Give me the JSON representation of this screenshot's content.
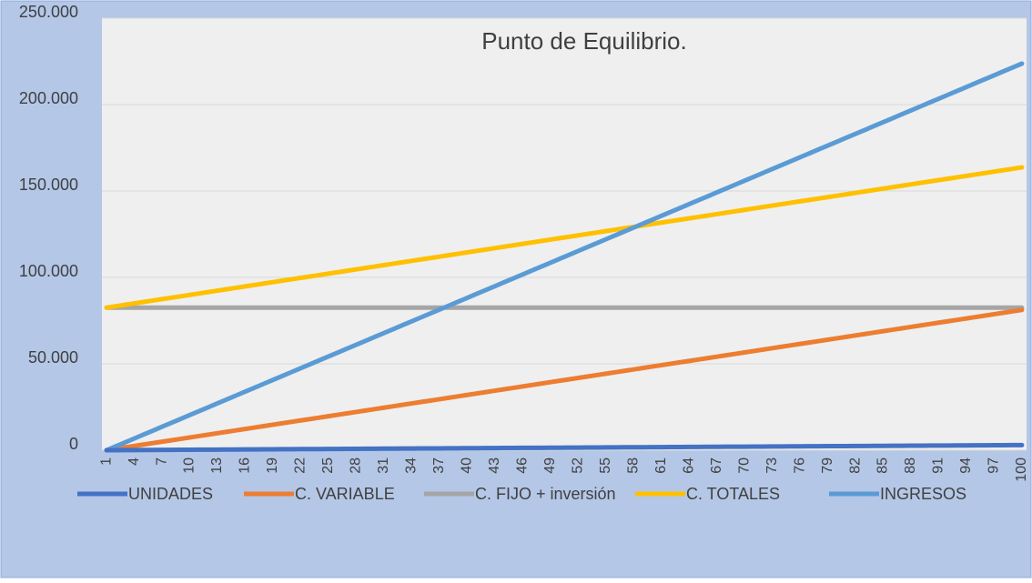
{
  "chart_data": {
    "type": "line",
    "title": "Punto de Equilibrio.",
    "categories": [
      1,
      null,
      null,
      4,
      null,
      null,
      7,
      null,
      null,
      10,
      null,
      null,
      13,
      null,
      null,
      16,
      null,
      null,
      19,
      null,
      null,
      22,
      null,
      null,
      25,
      null,
      null,
      28,
      null,
      null,
      31,
      null,
      null,
      34,
      null,
      null,
      37,
      null,
      null,
      40,
      null,
      null,
      43,
      null,
      null,
      46,
      null,
      null,
      49,
      null,
      null,
      52,
      null,
      null,
      55,
      null,
      null,
      58,
      null,
      null,
      61,
      null,
      null,
      64,
      null,
      null,
      67,
      null,
      null,
      70,
      null,
      null,
      73,
      null,
      null,
      76,
      null,
      null,
      79,
      null,
      null,
      82,
      null,
      null,
      85,
      null,
      null,
      88,
      null,
      null,
      91,
      null,
      null,
      94,
      null,
      null,
      97,
      null,
      null,
      100
    ],
    "series": [
      {
        "name": "UNIDADES",
        "color": "#4472c4",
        "values": [
          0,
          30,
          60,
          90,
          120,
          150,
          180,
          210,
          240,
          270,
          300,
          330,
          360,
          390,
          420,
          450,
          480,
          510,
          540,
          570,
          600,
          630,
          660,
          690,
          720,
          750,
          780,
          810,
          840,
          870,
          900,
          930,
          960,
          990,
          1020,
          1050,
          1080,
          1110,
          1140,
          1170,
          1200,
          1230,
          1260,
          1290,
          1320,
          1350,
          1380,
          1410,
          1440,
          1470,
          1500,
          1530,
          1560,
          1590,
          1620,
          1650,
          1680,
          1710,
          1740,
          1770,
          1800,
          1830,
          1860,
          1890,
          1920,
          1950,
          1980,
          2010,
          2040,
          2070,
          2100,
          2130,
          2160,
          2190,
          2220,
          2250,
          2280,
          2310,
          2340,
          2370,
          2400,
          2430,
          2460,
          2490,
          2520,
          2550,
          2580,
          2610,
          2640,
          2670,
          2700,
          2730,
          2760,
          2790,
          2820,
          2850,
          2880,
          2910,
          2940,
          2970
        ]
      },
      {
        "name": "C. VARIABLE",
        "color": "#ed7d31",
        "values": [
          0,
          820,
          1640,
          2460,
          3280,
          4100,
          4920,
          5740,
          6560,
          7380,
          8200,
          9020,
          9840,
          10660,
          11480,
          12300,
          13120,
          13940,
          14760,
          15580,
          16400,
          17220,
          18040,
          18860,
          19680,
          20500,
          21320,
          22140,
          22960,
          23780,
          24600,
          25420,
          26240,
          27060,
          27880,
          28700,
          29520,
          30340,
          31160,
          31980,
          32800,
          33620,
          34440,
          35260,
          36080,
          36900,
          37720,
          38540,
          39360,
          40180,
          41000,
          41820,
          42640,
          43460,
          44280,
          45100,
          45920,
          46740,
          47560,
          48380,
          49200,
          50020,
          50840,
          51660,
          52480,
          53300,
          54120,
          54940,
          55760,
          56580,
          57400,
          58220,
          59040,
          59860,
          60680,
          61500,
          62320,
          63140,
          63960,
          64780,
          65600,
          66420,
          67240,
          68060,
          68880,
          69700,
          70520,
          71340,
          72160,
          72980,
          73800,
          74620,
          75440,
          76260,
          77080,
          77900,
          78720,
          79540,
          80360,
          81180
        ]
      },
      {
        "name": "C. FIJO + inversión",
        "color": "#a5a5a5",
        "values": [
          82500,
          82500,
          82500,
          82500,
          82500,
          82500,
          82500,
          82500,
          82500,
          82500,
          82500,
          82500,
          82500,
          82500,
          82500,
          82500,
          82500,
          82500,
          82500,
          82500,
          82500,
          82500,
          82500,
          82500,
          82500,
          82500,
          82500,
          82500,
          82500,
          82500,
          82500,
          82500,
          82500,
          82500,
          82500,
          82500,
          82500,
          82500,
          82500,
          82500,
          82500,
          82500,
          82500,
          82500,
          82500,
          82500,
          82500,
          82500,
          82500,
          82500,
          82500,
          82500,
          82500,
          82500,
          82500,
          82500,
          82500,
          82500,
          82500,
          82500,
          82500,
          82500,
          82500,
          82500,
          82500,
          82500,
          82500,
          82500,
          82500,
          82500,
          82500,
          82500,
          82500,
          82500,
          82500,
          82500,
          82500,
          82500,
          82500,
          82500,
          82500,
          82500,
          82500,
          82500,
          82500,
          82500,
          82500,
          82500,
          82500,
          82500,
          82500,
          82500,
          82500,
          82500,
          82500,
          82500,
          82500,
          82500,
          82500,
          82500
        ]
      },
      {
        "name": "C. TOTALES",
        "color": "#ffc000",
        "values": [
          82500,
          83320,
          84140,
          84960,
          85780,
          86600,
          87420,
          88240,
          89060,
          89880,
          90700,
          91520,
          92340,
          93160,
          93980,
          94800,
          95620,
          96440,
          97260,
          98080,
          98900,
          99720,
          100540,
          101360,
          102180,
          103000,
          103820,
          104640,
          105460,
          106280,
          107100,
          107920,
          108740,
          109560,
          110380,
          111200,
          112020,
          112840,
          113660,
          114480,
          115300,
          116120,
          116940,
          117760,
          118580,
          119400,
          120220,
          121040,
          121860,
          122680,
          123500,
          124320,
          125140,
          125960,
          126780,
          127600,
          128420,
          129240,
          130060,
          130880,
          131700,
          132520,
          133340,
          134160,
          134980,
          135800,
          136620,
          137440,
          138260,
          139080,
          139900,
          140720,
          141540,
          142360,
          143180,
          144000,
          144820,
          145640,
          146460,
          147280,
          148100,
          148920,
          149740,
          150560,
          151380,
          152200,
          153020,
          153840,
          154660,
          155480,
          156300,
          157120,
          157940,
          158760,
          159580,
          160400,
          161220,
          162040,
          162860,
          163680
        ]
      },
      {
        "name": "INGRESOS",
        "color": "#5b9bd5",
        "values": [
          0,
          2260,
          4520,
          6780,
          9040,
          11300,
          13560,
          15820,
          18080,
          20340,
          22600,
          24860,
          27120,
          29380,
          31640,
          33900,
          36160,
          38420,
          40680,
          42940,
          45200,
          47460,
          49720,
          51980,
          54240,
          56500,
          58760,
          61020,
          63280,
          65540,
          67800,
          70060,
          72320,
          74580,
          76840,
          79100,
          81360,
          83620,
          85880,
          88140,
          90400,
          92660,
          94920,
          97180,
          99440,
          101700,
          103960,
          106220,
          108480,
          110740,
          113000,
          115260,
          117520,
          119780,
          122040,
          124300,
          126560,
          128820,
          131080,
          133340,
          135600,
          137860,
          140120,
          142380,
          144640,
          146900,
          149160,
          151420,
          153680,
          155940,
          158200,
          160460,
          162720,
          164980,
          167240,
          169500,
          171760,
          174020,
          176280,
          178540,
          180800,
          183060,
          185320,
          187580,
          189840,
          192100,
          194360,
          196620,
          198880,
          201140,
          203400,
          205660,
          207920,
          210180,
          212440,
          214700,
          216960,
          219220,
          221480,
          223740
        ]
      }
    ],
    "ylim": [
      0,
      250000
    ],
    "yticks": [
      0,
      {
        "value": 50000,
        "label": "50.000"
      },
      {
        "value": 100000,
        "label": "100.000"
      },
      {
        "value": 150000,
        "label": "150.000"
      },
      {
        "value": 200000,
        "label": "200.000"
      },
      {
        "value": 250000,
        "label": "250.000"
      }
    ],
    "grid": true,
    "legend": "bottom"
  }
}
